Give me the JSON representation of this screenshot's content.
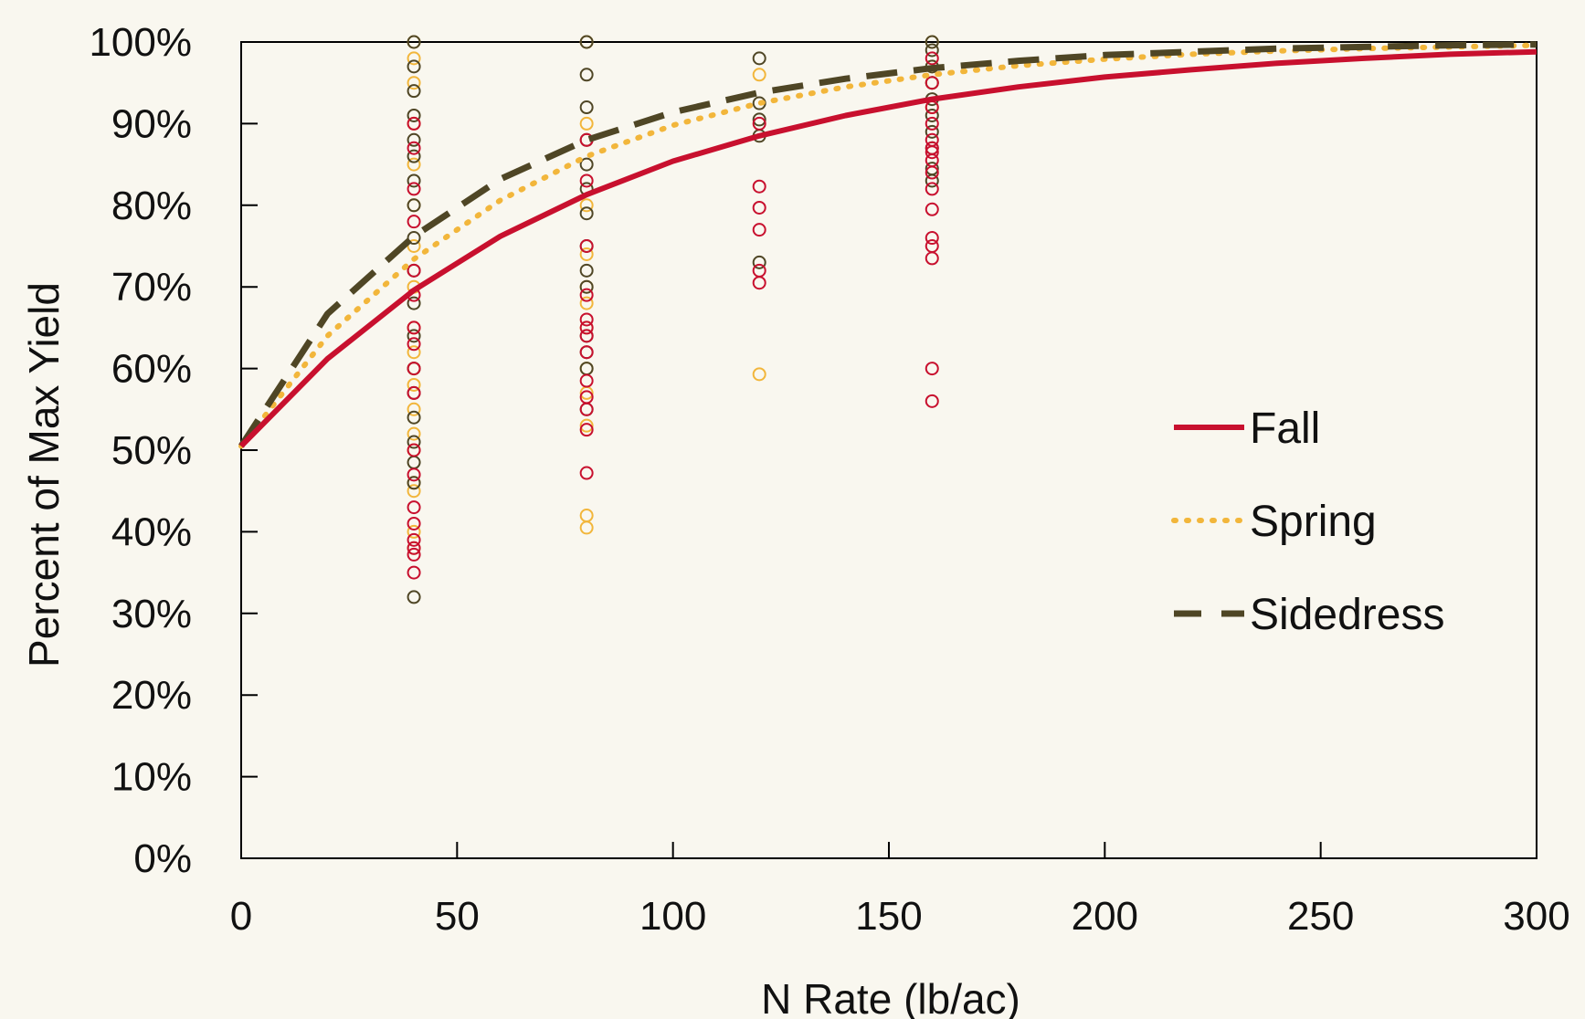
{
  "chart_data": {
    "type": "scatter",
    "xlabel": "N Rate (lb/ac)",
    "ylabel": "Percent of Max Yield",
    "xlim": [
      0,
      300
    ],
    "ylim": [
      0,
      1
    ],
    "x_ticks": [
      0,
      50,
      100,
      150,
      200,
      250,
      300
    ],
    "y_ticks": [
      0,
      0.1,
      0.2,
      0.3,
      0.4,
      0.5,
      0.6,
      0.7,
      0.8,
      0.9,
      1.0
    ],
    "x_tick_labels": [
      "0",
      "50",
      "100",
      "150",
      "200",
      "250",
      "300"
    ],
    "y_tick_labels": [
      "0%",
      "10%",
      "20%",
      "30%",
      "40%",
      "50%",
      "60%",
      "70%",
      "80%",
      "90%",
      "100%"
    ],
    "grid": false,
    "legend_position": "center-right",
    "series": [
      {
        "name": "Fall",
        "color": "#c8102e",
        "line_style": "solid",
        "curve": {
          "x": [
            0,
            20,
            40,
            60,
            80,
            100,
            120,
            140,
            160,
            180,
            200,
            220,
            240,
            260,
            280,
            300
          ],
          "y": [
            0.505,
            0.612,
            0.696,
            0.762,
            0.813,
            0.854,
            0.885,
            0.91,
            0.93,
            0.945,
            0.957,
            0.966,
            0.974,
            0.98,
            0.985,
            0.988
          ]
        },
        "points": {
          "x": [
            40,
            40,
            40,
            40,
            40,
            40,
            40,
            40,
            40,
            40,
            40,
            40,
            40,
            40,
            40,
            40,
            40,
            40,
            80,
            80,
            80,
            80,
            80,
            80,
            80,
            80,
            80,
            80,
            80,
            80,
            80,
            120,
            120,
            120,
            120,
            120,
            120,
            160,
            160,
            160,
            160,
            160,
            160,
            160,
            160,
            160,
            160,
            160,
            160,
            160,
            160,
            160,
            160
          ],
          "y": [
            0.35,
            0.372,
            0.38,
            0.39,
            0.41,
            0.43,
            0.47,
            0.5,
            0.57,
            0.6,
            0.63,
            0.65,
            0.69,
            0.72,
            0.78,
            0.82,
            0.87,
            0.9,
            0.472,
            0.525,
            0.55,
            0.565,
            0.585,
            0.62,
            0.64,
            0.65,
            0.66,
            0.69,
            0.75,
            0.83,
            0.88,
            0.705,
            0.72,
            0.77,
            0.797,
            0.823,
            0.9,
            0.56,
            0.6,
            0.735,
            0.75,
            0.76,
            0.795,
            0.82,
            0.84,
            0.855,
            0.865,
            0.87,
            0.88,
            0.9,
            0.92,
            0.95,
            0.98
          ]
        }
      },
      {
        "name": "Spring",
        "color": "#f2b63b",
        "line_style": "dotted",
        "curve": {
          "x": [
            0,
            20,
            40,
            60,
            80,
            100,
            120,
            140,
            160,
            180,
            200,
            220,
            240,
            260,
            280,
            300
          ],
          "y": [
            0.505,
            0.64,
            0.734,
            0.806,
            0.86,
            0.898,
            0.925,
            0.945,
            0.96,
            0.971,
            0.979,
            0.985,
            0.989,
            0.992,
            0.994,
            0.996
          ]
        },
        "points": {
          "x": [
            40,
            40,
            40,
            40,
            40,
            40,
            40,
            40,
            40,
            40,
            40,
            40,
            40,
            40,
            40,
            40,
            40,
            40,
            40,
            80,
            80,
            80,
            80,
            80,
            80,
            80,
            80,
            80,
            80,
            80,
            80,
            120,
            120,
            160,
            160,
            160,
            160
          ],
          "y": [
            0.38,
            0.4,
            0.45,
            0.46,
            0.5,
            0.52,
            0.55,
            0.58,
            0.6,
            0.62,
            0.65,
            0.7,
            0.75,
            0.8,
            0.85,
            0.9,
            0.95,
            0.98,
            1.0,
            0.405,
            0.42,
            0.53,
            0.57,
            0.6,
            0.65,
            0.68,
            0.7,
            0.74,
            0.8,
            0.9,
            1.0,
            0.593,
            0.96,
            0.92,
            0.95,
            0.97,
            1.0
          ]
        }
      },
      {
        "name": "Sidedress",
        "color": "#4f4625",
        "line_style": "dashed",
        "curve": {
          "x": [
            0,
            20,
            40,
            60,
            80,
            100,
            120,
            140,
            160,
            180,
            200,
            220,
            240,
            260,
            280,
            300
          ],
          "y": [
            0.505,
            0.667,
            0.762,
            0.832,
            0.88,
            0.914,
            0.938,
            0.955,
            0.968,
            0.977,
            0.984,
            0.988,
            0.992,
            0.994,
            0.996,
            0.997
          ]
        },
        "points": {
          "x": [
            40,
            40,
            40,
            40,
            40,
            40,
            40,
            40,
            40,
            40,
            40,
            40,
            40,
            40,
            40,
            40,
            40,
            40,
            40,
            80,
            80,
            80,
            80,
            80,
            80,
            80,
            80,
            80,
            80,
            80,
            80,
            80,
            80,
            120,
            120,
            120,
            120,
            120,
            160,
            160,
            160,
            160,
            160,
            160,
            160,
            160,
            160,
            160
          ],
          "y": [
            0.32,
            0.46,
            0.485,
            0.51,
            0.54,
            0.57,
            0.6,
            0.64,
            0.68,
            0.72,
            0.76,
            0.8,
            0.83,
            0.86,
            0.88,
            0.91,
            0.94,
            0.97,
            1.0,
            0.55,
            0.6,
            0.62,
            0.64,
            0.7,
            0.72,
            0.75,
            0.79,
            0.82,
            0.85,
            0.88,
            0.92,
            0.96,
            1.0,
            0.73,
            0.885,
            0.905,
            0.925,
            0.98,
            0.83,
            0.845,
            0.87,
            0.89,
            0.91,
            0.93,
            0.95,
            0.97,
            0.99,
            1.0
          ]
        }
      }
    ]
  }
}
